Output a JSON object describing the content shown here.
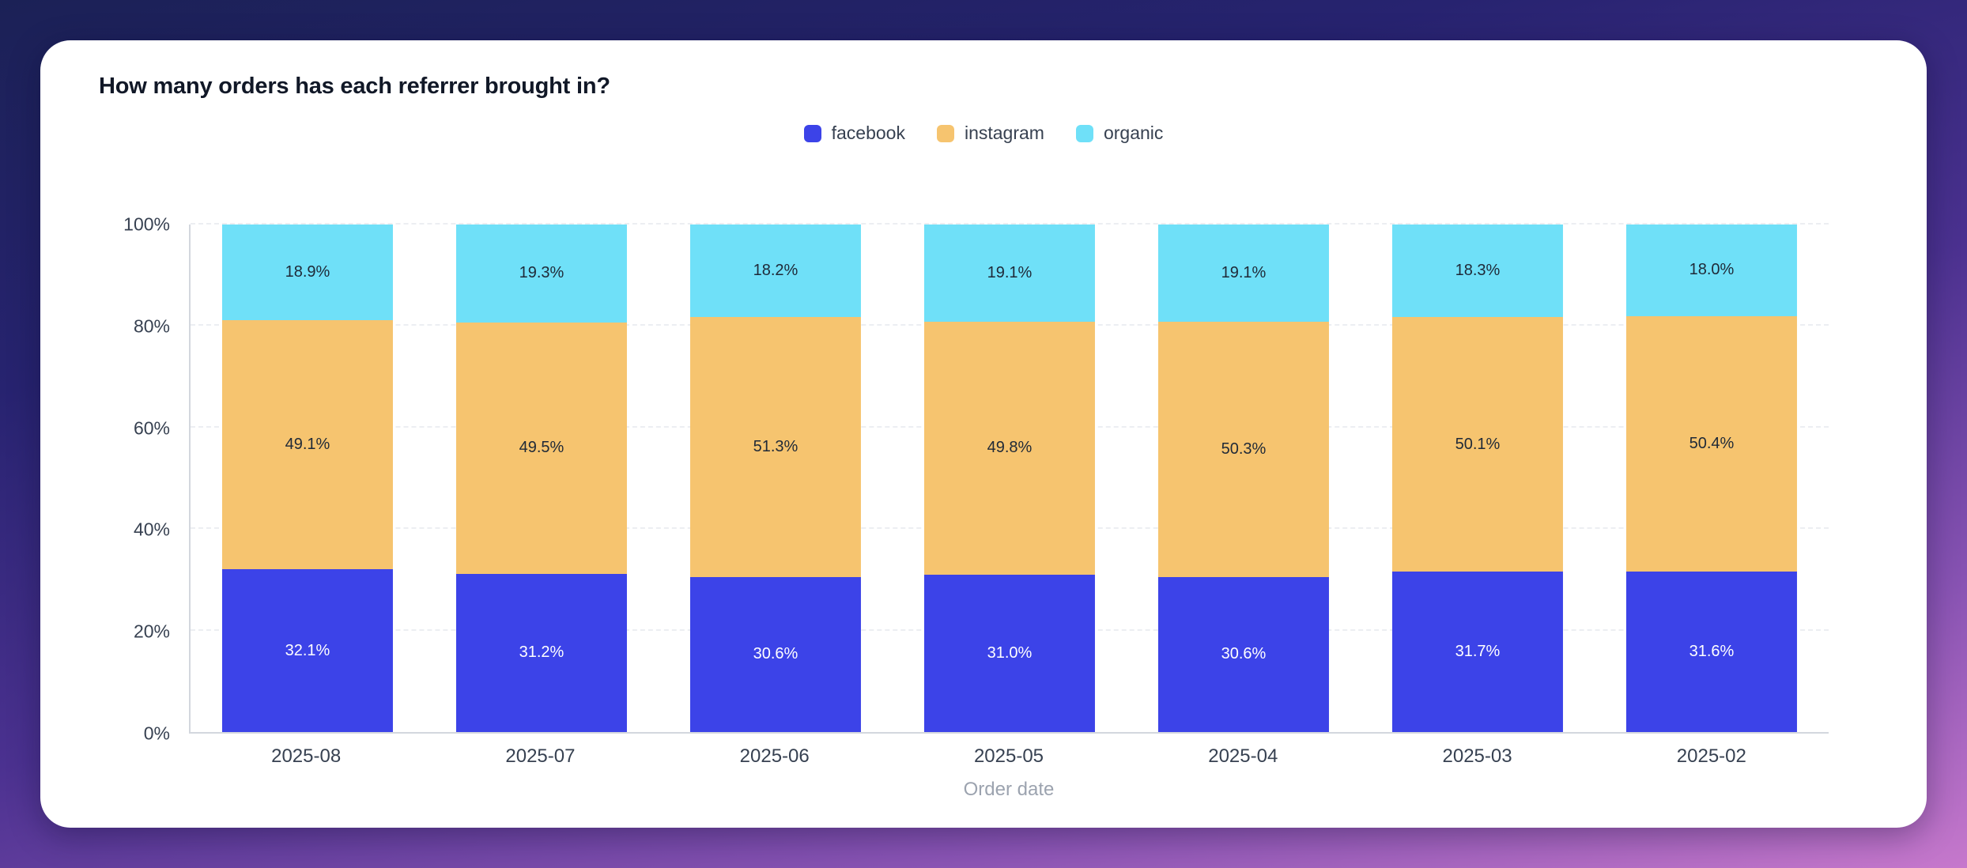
{
  "card": {
    "title": "How many orders has each referrer brought in?"
  },
  "chart_data": {
    "type": "bar",
    "stacked": true,
    "percent_stacked": true,
    "title": "How many orders has each referrer brought in?",
    "categories": [
      "2025-08",
      "2025-07",
      "2025-06",
      "2025-05",
      "2025-04",
      "2025-03",
      "2025-02"
    ],
    "series": [
      {
        "name": "facebook",
        "color": "#3c43e8",
        "label_color": "#ffffff",
        "values": [
          32.1,
          31.2,
          30.6,
          31.0,
          30.6,
          31.7,
          31.6
        ]
      },
      {
        "name": "instagram",
        "color": "#f6c46f",
        "label_color": "#1f2937",
        "values": [
          49.1,
          49.5,
          51.3,
          49.8,
          50.3,
          50.1,
          50.4
        ]
      },
      {
        "name": "organic",
        "color": "#6fe0f8",
        "label_color": "#1f2937",
        "values": [
          18.9,
          19.3,
          18.2,
          19.1,
          19.1,
          18.3,
          18.0
        ]
      }
    ],
    "xlabel": "Order date",
    "ylabel": "",
    "ylim": [
      0,
      100
    ],
    "y_ticks": [
      "0%",
      "20%",
      "40%",
      "60%",
      "80%",
      "100%"
    ],
    "value_suffix": "%",
    "grid": "dashed-horizontal",
    "legend_position": "top-center"
  }
}
